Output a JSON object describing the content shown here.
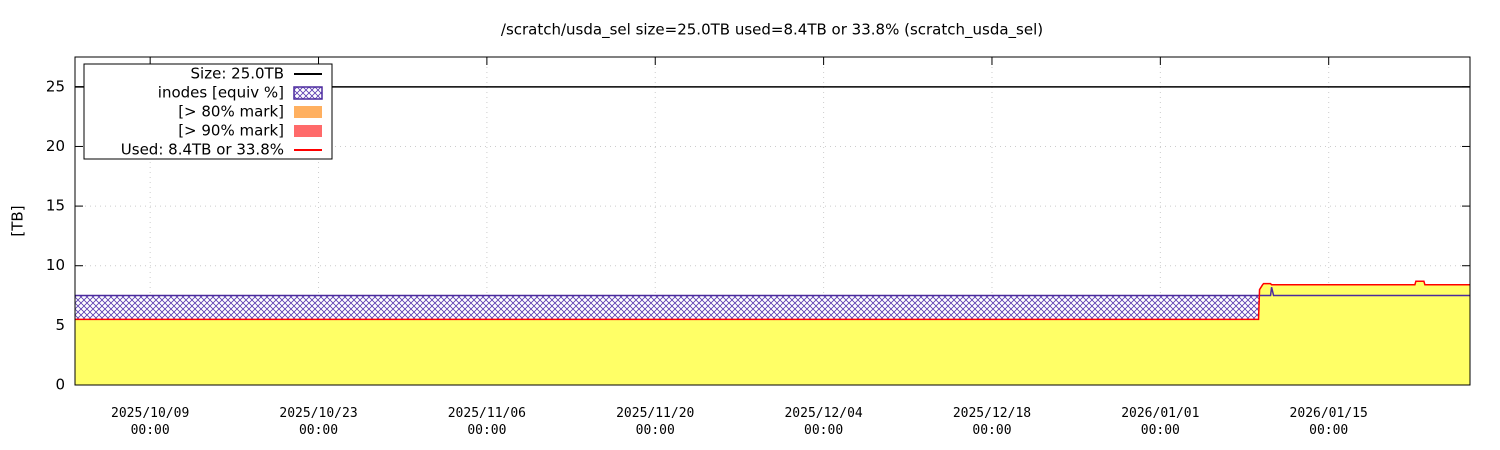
{
  "chart_data": {
    "type": "line",
    "title": "/scratch/usda_sel size=25.0TB used=8.4TB or 33.8% (scratch_usda_sel)",
    "y_label": "[TB]",
    "x": [
      "2025/10/02 18:00",
      "2026/01/09 04:00",
      "2026/01/09 06:00",
      "2026/01/09 12:00",
      "2026/01/09 14:00",
      "2026/01/10 04:00",
      "2026/01/10 06:00",
      "2026/01/10 10:00",
      "2026/01/22 04:00",
      "2026/01/22 06:00",
      "2026/01/22 22:00",
      "2026/01/23 00:00",
      "2026/01/26 18:00"
    ],
    "xlim": [
      "2025/10/02 18:00",
      "2026/01/26 18:00"
    ],
    "xticks": [
      {
        "value": "2025/10/09 00:00",
        "label": [
          "2025/10/09",
          "00:00"
        ]
      },
      {
        "value": "2025/10/23 00:00",
        "label": [
          "2025/10/23",
          "00:00"
        ]
      },
      {
        "value": "2025/11/06 00:00",
        "label": [
          "2025/11/06",
          "00:00"
        ]
      },
      {
        "value": "2025/11/20 00:00",
        "label": [
          "2025/11/20",
          "00:00"
        ]
      },
      {
        "value": "2025/12/04 00:00",
        "label": [
          "2025/12/04",
          "00:00"
        ]
      },
      {
        "value": "2025/12/18 00:00",
        "label": [
          "2025/12/18",
          "00:00"
        ]
      },
      {
        "value": "2026/01/01 00:00",
        "label": [
          "2026/01/01",
          "00:00"
        ]
      },
      {
        "value": "2026/01/15 00:00",
        "label": [
          "2026/01/15",
          "00:00"
        ]
      }
    ],
    "ylim": [
      0,
      27.5
    ],
    "yticks": [
      0,
      5,
      10,
      15,
      20,
      25
    ],
    "grid": true,
    "legend_position": "top-left",
    "series": [
      {
        "name": "Size: 25.0TB",
        "color": "#000000",
        "values": [
          25,
          25,
          25,
          25,
          25,
          25,
          25,
          25,
          25,
          25,
          25,
          25,
          25
        ]
      },
      {
        "name": "inodes [equiv %]",
        "color": "#4b2a9e",
        "values": [
          7.5,
          7.5,
          7.5,
          7.5,
          7.5,
          7.5,
          8.2,
          7.5,
          7.5,
          7.5,
          7.5,
          7.5,
          7.5
        ]
      },
      {
        "name": "[> 80% mark]",
        "color": "#ffb060"
      },
      {
        "name": "[> 90% mark]",
        "color": "#ff6a6a"
      },
      {
        "name": "Used: 8.4TB or 33.8%",
        "color": "#ff0000",
        "fill_color": "#ffff66",
        "values": [
          5.5,
          5.5,
          8.0,
          8.4,
          8.5,
          8.5,
          8.4,
          8.4,
          8.4,
          8.7,
          8.7,
          8.4,
          8.4
        ]
      }
    ]
  }
}
